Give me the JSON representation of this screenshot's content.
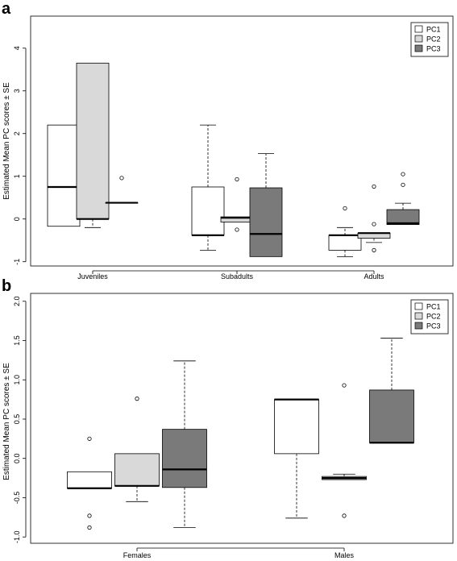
{
  "colors": {
    "PC1": "#ffffff",
    "PC2": "#d9d9d9",
    "PC3": "#7a7a7a"
  },
  "chart_data": [
    {
      "panel": "a",
      "type": "boxplot",
      "ylabel": "Estimated Mean PC scores ± SE",
      "ylim": [
        -1.1,
        4.75
      ],
      "yticks": [
        -1,
        0,
        1,
        2,
        3,
        4
      ],
      "categories": [
        "Juveniles",
        "Subadults",
        "Adults"
      ],
      "legend": {
        "position": "top-right",
        "entries": [
          "PC1",
          "PC2",
          "PC3"
        ]
      },
      "series": [
        {
          "name": "PC1",
          "boxes": [
            {
              "min": -0.17,
              "q1": -0.17,
              "median": 0.75,
              "q3": 2.2,
              "max": 2.2,
              "outliers": []
            },
            {
              "min": -0.73,
              "q1": -0.38,
              "median": -0.38,
              "q3": 0.75,
              "max": 2.2,
              "outliers": []
            },
            {
              "min": -0.88,
              "q1": -0.73,
              "median": -0.38,
              "q3": -0.38,
              "max": -0.2,
              "outliers": [
                0.25
              ]
            }
          ]
        },
        {
          "name": "PC2",
          "boxes": [
            {
              "min": -0.2,
              "q1": 0.0,
              "median": 0.0,
              "q3": 3.65,
              "max": 3.65,
              "outliers": []
            },
            {
              "min": -0.07,
              "q1": -0.07,
              "median": 0.03,
              "q3": 0.05,
              "max": 0.05,
              "outliers": [
                0.93,
                -0.25
              ]
            },
            {
              "min": -0.55,
              "q1": -0.45,
              "median": -0.33,
              "q3": -0.33,
              "max": -0.33,
              "outliers": [
                0.76,
                -0.12,
                -0.73
              ]
            }
          ]
        },
        {
          "name": "PC3",
          "boxes": [
            {
              "min": 0.38,
              "q1": 0.38,
              "median": 0.38,
              "q3": 0.38,
              "max": 0.38,
              "outliers": [
                0.96
              ]
            },
            {
              "min": -0.88,
              "q1": -0.88,
              "median": -0.35,
              "q3": 0.73,
              "max": 1.53,
              "outliers": []
            },
            {
              "min": -0.13,
              "q1": -0.13,
              "median": -0.1,
              "q3": 0.22,
              "max": 0.37,
              "outliers": [
                0.8,
                1.05
              ]
            }
          ]
        }
      ]
    },
    {
      "panel": "b",
      "type": "boxplot",
      "ylabel": "Estimated Mean PC scores ± SE",
      "ylim": [
        -1.08,
        2.1
      ],
      "yticks": [
        -1.0,
        -0.5,
        0.0,
        0.5,
        1.0,
        1.5,
        2.0
      ],
      "ytick_labels": [
        "-1.0",
        "-0.5",
        "0.0",
        "0.5",
        "1.0",
        "1.5",
        "2.0"
      ],
      "categories": [
        "Females",
        "Males"
      ],
      "legend": {
        "position": "top-right",
        "entries": [
          "PC1",
          "PC2",
          "PC3"
        ]
      },
      "series": [
        {
          "name": "PC1",
          "boxes": [
            {
              "min": -0.38,
              "q1": -0.38,
              "median": -0.38,
              "q3": -0.17,
              "max": -0.17,
              "outliers": [
                0.25,
                -0.73,
                -0.88
              ]
            },
            {
              "min": -0.76,
              "q1": 0.06,
              "median": 0.75,
              "q3": 0.75,
              "max": 0.75,
              "outliers": []
            }
          ]
        },
        {
          "name": "PC2",
          "boxes": [
            {
              "min": -0.55,
              "q1": -0.35,
              "median": -0.35,
              "q3": 0.06,
              "max": 0.06,
              "outliers": [
                0.76
              ]
            },
            {
              "min": -0.27,
              "q1": -0.27,
              "median": -0.25,
              "q3": -0.23,
              "max": -0.2,
              "outliers": [
                0.93,
                -0.73
              ]
            }
          ]
        },
        {
          "name": "PC3",
          "boxes": [
            {
              "min": -0.88,
              "q1": -0.37,
              "median": -0.14,
              "q3": 0.37,
              "max": 1.24,
              "outliers": []
            },
            {
              "min": 0.2,
              "q1": 0.2,
              "median": 0.2,
              "q3": 0.87,
              "max": 1.53,
              "outliers": []
            }
          ]
        }
      ]
    }
  ]
}
